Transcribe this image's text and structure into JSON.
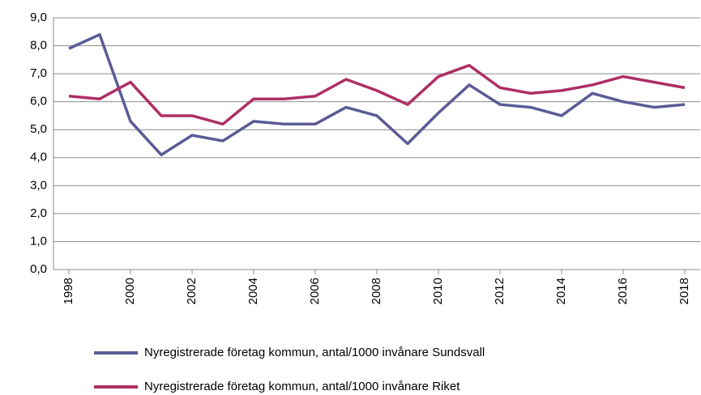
{
  "chart_data": {
    "type": "line",
    "x": [
      1998,
      1999,
      2000,
      2001,
      2002,
      2003,
      2004,
      2005,
      2006,
      2007,
      2008,
      2009,
      2010,
      2011,
      2012,
      2013,
      2014,
      2015,
      2016,
      2017,
      2018
    ],
    "xlim": [
      1997.5,
      2018.5
    ],
    "xticks": [
      1998,
      2000,
      2002,
      2004,
      2006,
      2008,
      2010,
      2012,
      2014,
      2016,
      2018
    ],
    "ylim": [
      0,
      9
    ],
    "yticks": [
      {
        "value": 0,
        "label": "0,0"
      },
      {
        "value": 1,
        "label": "1,0"
      },
      {
        "value": 2,
        "label": "2,0"
      },
      {
        "value": 3,
        "label": "3,0"
      },
      {
        "value": 4,
        "label": "4,0"
      },
      {
        "value": 5,
        "label": "5,0"
      },
      {
        "value": 6,
        "label": "6,0"
      },
      {
        "value": 7,
        "label": "7,0"
      },
      {
        "value": 8,
        "label": "8,0"
      },
      {
        "value": 9,
        "label": "9,0"
      }
    ],
    "grid": true,
    "legend": "bottom",
    "series": [
      {
        "name": "Nyregistrerade företag kommun, antal/1000 invånare Sundsvall",
        "color": "#5b5b96",
        "values": [
          7.9,
          8.4,
          5.3,
          4.1,
          4.8,
          4.6,
          5.3,
          5.2,
          5.2,
          5.8,
          5.5,
          4.5,
          5.6,
          6.6,
          5.9,
          5.8,
          5.5,
          6.3,
          6.0,
          5.8,
          5.9
        ]
      },
      {
        "name": "Nyregistrerade företag kommun, antal/1000 invånare Riket",
        "color": "#ae2f63",
        "values": [
          6.2,
          6.1,
          6.7,
          5.5,
          5.5,
          5.2,
          6.1,
          6.1,
          6.2,
          6.8,
          6.4,
          5.9,
          6.9,
          7.3,
          6.5,
          6.3,
          6.4,
          6.6,
          6.9,
          6.7,
          6.5
        ]
      }
    ]
  }
}
